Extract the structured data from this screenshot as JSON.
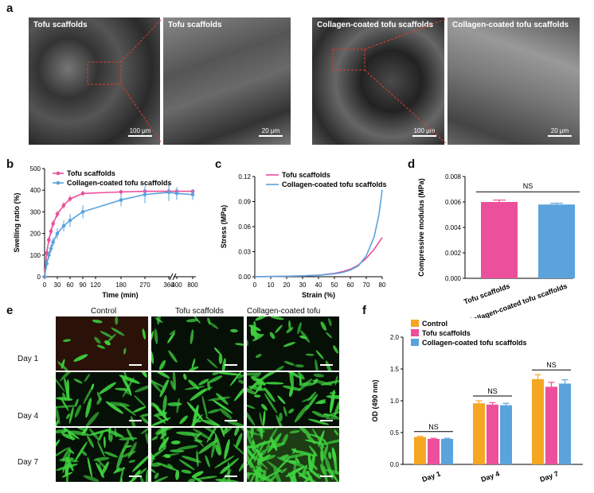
{
  "panel_labels": {
    "a": "a",
    "b": "b",
    "c": "c",
    "d": "d",
    "e": "e",
    "f": "f"
  },
  "sem_images": [
    {
      "caption": "Tofu scaffolds",
      "scale": "100 μm"
    },
    {
      "caption": "Tofu scaffolds",
      "scale": "20 μm"
    },
    {
      "caption": "Collagen-coated tofu scaffolds",
      "scale": "100 μm"
    },
    {
      "caption": "Collagen-coated tofu scaffolds",
      "scale": "20 μm"
    }
  ],
  "fluorescence": {
    "columns": [
      "Control",
      "Tofu scaffolds",
      "Collagen-coated  tofu scaffolds"
    ],
    "rows": [
      "Day 1",
      "Day 4",
      "Day 7"
    ]
  },
  "colors": {
    "pink": "#ec4f9b",
    "blue": "#5aa3dc",
    "orange": "#f5a623",
    "cell_green": "#3fd23f"
  },
  "chart_data": [
    {
      "type": "line",
      "panel": "b",
      "xlabel": "Time (min)",
      "ylabel": "Swelling ratio (%)",
      "xticks": [
        "0",
        "30",
        "60",
        "90",
        "120",
        "180",
        "270",
        "360",
        "400",
        "800"
      ],
      "yticks": [
        "0",
        "100",
        "200",
        "300",
        "400",
        "500"
      ],
      "ylim": [
        0,
        500
      ],
      "axis_break": true,
      "series": [
        {
          "name": "Tofu scaffolds",
          "color": "#ec4f9b",
          "x": [
            0,
            5,
            10,
            15,
            20,
            30,
            45,
            60,
            90,
            180,
            270,
            360,
            400,
            800
          ],
          "y": [
            0,
            110,
            170,
            210,
            245,
            290,
            330,
            360,
            385,
            392,
            395,
            395,
            395,
            395
          ],
          "err": [
            0,
            15,
            15,
            15,
            15,
            15,
            15,
            15,
            12,
            10,
            10,
            10,
            10,
            10
          ]
        },
        {
          "name": "Collagen-coated tofu scaffolds",
          "color": "#5aa3dc",
          "x": [
            0,
            5,
            10,
            15,
            20,
            30,
            45,
            60,
            90,
            180,
            270,
            360,
            400,
            800
          ],
          "y": [
            0,
            60,
            100,
            130,
            160,
            200,
            235,
            260,
            300,
            355,
            380,
            390,
            385,
            380
          ],
          "err": [
            0,
            20,
            20,
            20,
            20,
            25,
            25,
            30,
            30,
            30,
            40,
            40,
            30,
            25
          ]
        }
      ]
    },
    {
      "type": "line",
      "panel": "c",
      "xlabel": "Strain (%)",
      "ylabel": "Stress (MPa)",
      "xlim": [
        0,
        80
      ],
      "ylim": [
        0,
        0.12
      ],
      "xticks": [
        "0",
        "10",
        "20",
        "30",
        "40",
        "50",
        "60",
        "70",
        "80"
      ],
      "yticks": [
        "0.00",
        "0.03",
        "0.06",
        "0.09",
        "0.12"
      ],
      "series": [
        {
          "name": "Tofu scaffolds",
          "color": "#ec4f9b",
          "x": [
            0,
            10,
            20,
            30,
            40,
            50,
            55,
            60,
            65,
            70,
            75,
            80
          ],
          "y": [
            0,
            0.0003,
            0.0006,
            0.001,
            0.0018,
            0.004,
            0.006,
            0.009,
            0.014,
            0.022,
            0.033,
            0.047
          ]
        },
        {
          "name": "Collagen-coated tofu scaffolds",
          "color": "#5aa3dc",
          "x": [
            0,
            10,
            20,
            30,
            40,
            50,
            55,
            60,
            65,
            70,
            75,
            78,
            80
          ],
          "y": [
            0,
            0.0003,
            0.0006,
            0.001,
            0.0017,
            0.0035,
            0.005,
            0.008,
            0.013,
            0.025,
            0.048,
            0.075,
            0.104
          ]
        }
      ]
    },
    {
      "type": "bar",
      "panel": "d",
      "ylabel": "Compressive modulus (MPa)",
      "categories": [
        "Tofu scaffolds",
        "Collagen-coated  tofu scaffolds"
      ],
      "values": [
        0.006,
        0.0058
      ],
      "errors": [
        0.00015,
        0.0001
      ],
      "colors": [
        "#ec4f9b",
        "#5aa3dc"
      ],
      "ylim": [
        0,
        0.008
      ],
      "yticks": [
        "0.000",
        "0.002",
        "0.004",
        "0.006",
        "0.008"
      ],
      "annotation": "NS"
    },
    {
      "type": "bar",
      "panel": "f",
      "ylabel": "OD (490 nm)",
      "categories": [
        "Day 1",
        "Day 4",
        "Day 7"
      ],
      "ylim": [
        0,
        2.0
      ],
      "yticks": [
        "0.0",
        "0.5",
        "1.0",
        "1.5",
        "2.0"
      ],
      "annotations": [
        "NS",
        "NS",
        "NS"
      ],
      "series": [
        {
          "name": "Control",
          "color": "#f5a623",
          "values": [
            0.43,
            0.96,
            1.34
          ],
          "errors": [
            0.01,
            0.04,
            0.07
          ]
        },
        {
          "name": "Tofu scaffolds",
          "color": "#ec4f9b",
          "values": [
            0.4,
            0.94,
            1.22
          ],
          "errors": [
            0.01,
            0.03,
            0.07
          ]
        },
        {
          "name": "Collagen-coated tofu scaffolds",
          "color": "#5aa3dc",
          "values": [
            0.4,
            0.93,
            1.27
          ],
          "errors": [
            0.01,
            0.03,
            0.06
          ]
        }
      ]
    }
  ]
}
